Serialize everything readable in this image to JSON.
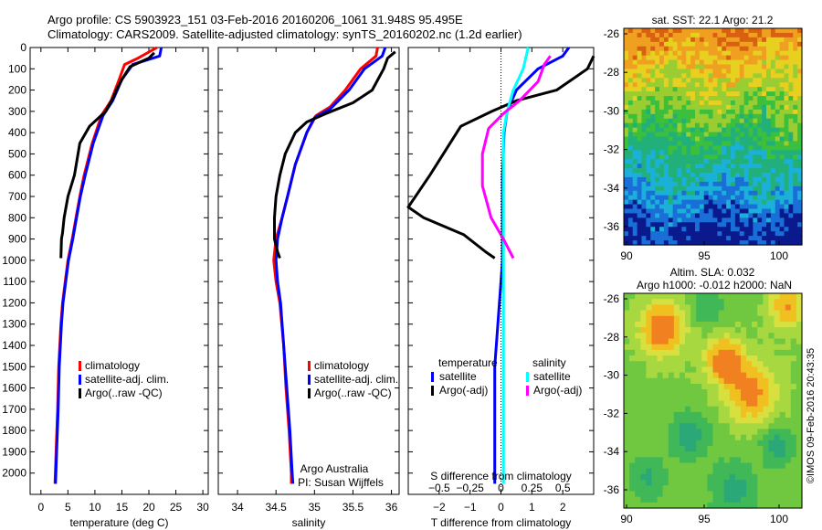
{
  "titles": {
    "line1": "Argo profile: CS 5903923_151 03-Feb-2016 20160206_1061 31.948S 95.495E",
    "line2": "Climatology: CARS2009. Satellite-adjusted climatology: synTS_20160202.nc (1.2d earlier)"
  },
  "colors": {
    "climatology": "#ff0000",
    "satellite": "#0000ff",
    "argo": "#000000",
    "salinity_satellite": "#00ffff",
    "salinity_argo": "#ff00ff"
  },
  "panel1": {
    "xlabel": "temperature (deg C)",
    "legend": [
      "climatology",
      "satellite-adj. clim.",
      "Argo(..raw -QC)"
    ],
    "chart_data": {
      "type": "line",
      "xlim": [
        -2,
        31
      ],
      "ylim": [
        2100,
        0
      ],
      "xticks": [
        0,
        5,
        10,
        15,
        20,
        25,
        30
      ],
      "yticks": [
        0,
        100,
        200,
        300,
        400,
        500,
        600,
        700,
        800,
        900,
        1000,
        1100,
        1200,
        1300,
        1400,
        1500,
        1600,
        1700,
        1800,
        1900,
        2000
      ],
      "series": [
        {
          "name": "climatology",
          "color": "red",
          "points": [
            [
              21.5,
              0
            ],
            [
              18,
              50
            ],
            [
              15.5,
              80
            ],
            [
              14.5,
              150
            ],
            [
              13,
              250
            ],
            [
              11.2,
              320
            ],
            [
              9.5,
              450
            ],
            [
              8,
              600
            ],
            [
              7.2,
              700
            ],
            [
              6.5,
              800
            ],
            [
              5.8,
              900
            ],
            [
              5,
              1000
            ],
            [
              4.5,
              1100
            ],
            [
              4,
              1200
            ],
            [
              3.7,
              1300
            ],
            [
              3.5,
              1400
            ],
            [
              3.3,
              1500
            ],
            [
              3.1,
              1700
            ],
            [
              2.8,
              1900
            ],
            [
              2.6,
              2050
            ]
          ]
        },
        {
          "name": "satellite-adj. clim.",
          "color": "blue",
          "points": [
            [
              22.3,
              0
            ],
            [
              22,
              40
            ],
            [
              17,
              80
            ],
            [
              15,
              150
            ],
            [
              13.3,
              250
            ],
            [
              11.5,
              320
            ],
            [
              9.7,
              450
            ],
            [
              8.2,
              600
            ],
            [
              7.3,
              700
            ],
            [
              6.6,
              800
            ],
            [
              5.9,
              900
            ],
            [
              5.1,
              1000
            ],
            [
              4.6,
              1100
            ],
            [
              4.1,
              1200
            ],
            [
              3.8,
              1300
            ],
            [
              3.6,
              1400
            ],
            [
              3.4,
              1500
            ],
            [
              3.2,
              1700
            ],
            [
              2.9,
              1900
            ],
            [
              2.7,
              2050
            ]
          ]
        },
        {
          "name": "Argo(..raw -QC)",
          "color": "black",
          "points": [
            [
              21,
              25
            ],
            [
              20,
              50
            ],
            [
              16.5,
              90
            ],
            [
              15,
              150
            ],
            [
              14,
              200
            ],
            [
              13.3,
              240
            ],
            [
              12,
              300
            ],
            [
              9,
              370
            ],
            [
              7.2,
              450
            ],
            [
              6.2,
              600
            ],
            [
              5,
              700
            ],
            [
              4.3,
              800
            ],
            [
              4,
              870
            ],
            [
              3.8,
              900
            ],
            [
              3.7,
              990
            ]
          ]
        }
      ]
    }
  },
  "panel2": {
    "xlabel": "salinity",
    "legend": [
      "climatology",
      "satellite-adj. clim.",
      "Argo(..raw -QC)"
    ],
    "footer1": "Argo Australia",
    "footer2": "PI: Susan Wijffels",
    "chart_data": {
      "type": "line",
      "xlim": [
        33.75,
        36.1
      ],
      "ylim": [
        2100,
        0
      ],
      "xticks": [
        34,
        34.5,
        35,
        35.5,
        36
      ],
      "xtick_labels": [
        "34",
        "34.5",
        "35",
        "35.5",
        "36"
      ],
      "series": [
        {
          "name": "climatology",
          "color": "red",
          "points": [
            [
              35.82,
              0
            ],
            [
              35.8,
              40
            ],
            [
              35.6,
              100
            ],
            [
              35.4,
              200
            ],
            [
              35.2,
              280
            ],
            [
              35.02,
              320
            ],
            [
              34.9,
              400
            ],
            [
              34.75,
              550
            ],
            [
              34.65,
              700
            ],
            [
              34.58,
              800
            ],
            [
              34.5,
              900
            ],
            [
              34.47,
              1000
            ],
            [
              34.5,
              1100
            ],
            [
              34.55,
              1200
            ],
            [
              34.6,
              1400
            ],
            [
              34.63,
              1600
            ],
            [
              34.67,
              1800
            ],
            [
              34.7,
              2000
            ],
            [
              34.7,
              2050
            ]
          ]
        },
        {
          "name": "satellite-adj. clim.",
          "color": "blue",
          "points": [
            [
              35.92,
              0
            ],
            [
              35.88,
              40
            ],
            [
              35.65,
              100
            ],
            [
              35.45,
              200
            ],
            [
              35.2,
              290
            ],
            [
              35.0,
              330
            ],
            [
              34.9,
              400
            ],
            [
              34.75,
              550
            ],
            [
              34.65,
              700
            ],
            [
              34.58,
              800
            ],
            [
              34.52,
              900
            ],
            [
              34.5,
              1000
            ],
            [
              34.52,
              1100
            ],
            [
              34.56,
              1200
            ],
            [
              34.6,
              1400
            ],
            [
              34.64,
              1600
            ],
            [
              34.68,
              1800
            ],
            [
              34.71,
              2000
            ],
            [
              34.72,
              2050
            ]
          ]
        },
        {
          "name": "Argo(..raw -QC)",
          "color": "black",
          "points": [
            [
              36.05,
              20
            ],
            [
              35.95,
              50
            ],
            [
              35.9,
              100
            ],
            [
              35.75,
              200
            ],
            [
              35.5,
              260
            ],
            [
              35.15,
              310
            ],
            [
              34.9,
              350
            ],
            [
              34.75,
              400
            ],
            [
              34.62,
              500
            ],
            [
              34.55,
              600
            ],
            [
              34.5,
              700
            ],
            [
              34.48,
              800
            ],
            [
              34.48,
              900
            ],
            [
              34.52,
              960
            ],
            [
              34.55,
              990
            ]
          ]
        }
      ]
    }
  },
  "panel3": {
    "top_label": "S difference from climatology",
    "xlabel": "T difference from climatology",
    "legend_head_temp": "temperature",
    "legend_head_sal": "salinity",
    "legend_left": [
      "satellite",
      "Argo(-adj)"
    ],
    "legend_right": [
      "satellite",
      "Argo(-adj)"
    ],
    "chart_data": {
      "type": "line",
      "xlim": [
        -3,
        3
      ],
      "ylim": [
        2100,
        0
      ],
      "xticks": [
        -2,
        -1,
        0,
        1,
        2
      ],
      "xtick_labels": [
        "−2",
        "−1",
        "0",
        "1",
        "2"
      ],
      "s_ticks": [
        -0.5,
        -0.25,
        0,
        0.25,
        0.5
      ],
      "s_tick_labels": [
        "−0.5",
        "−0.25",
        "0",
        "0.25",
        "0.5"
      ],
      "series": [
        {
          "name": "temperature satellite",
          "color": "blue",
          "axis": "T",
          "points": [
            [
              2.2,
              0
            ],
            [
              2,
              40
            ],
            [
              1.2,
              100
            ],
            [
              0.5,
              200
            ],
            [
              0.2,
              300
            ],
            [
              0.1,
              400
            ],
            [
              0.05,
              600
            ],
            [
              0.05,
              1000
            ],
            [
              -0.05,
              1200
            ],
            [
              -0.1,
              1300
            ],
            [
              -0.15,
              1400
            ],
            [
              -0.2,
              1500
            ],
            [
              -0.2,
              2050
            ]
          ]
        },
        {
          "name": "temperature Argo(-adj)",
          "color": "black",
          "axis": "T",
          "points": [
            [
              3.0,
              40
            ],
            [
              2.8,
              100
            ],
            [
              1.8,
              200
            ],
            [
              0.5,
              250
            ],
            [
              -0.3,
              300
            ],
            [
              -1.3,
              370
            ],
            [
              -2.3,
              600
            ],
            [
              -3,
              750
            ],
            [
              -2.5,
              800
            ],
            [
              -1.2,
              880
            ],
            [
              -0.5,
              960
            ],
            [
              -0.2,
              990
            ]
          ]
        },
        {
          "name": "salinity satellite",
          "color": "cyan",
          "axis": "S",
          "points": [
            [
              0.22,
              0
            ],
            [
              0.18,
              100
            ],
            [
              0.1,
              200
            ],
            [
              0.05,
              300
            ],
            [
              0.02,
              400
            ],
            [
              0.02,
              600
            ],
            [
              0.02,
              800
            ],
            [
              0.02,
              1000
            ],
            [
              0.02,
              2050
            ]
          ]
        },
        {
          "name": "salinity Argo(-adj)",
          "color": "magenta",
          "axis": "S",
          "points": [
            [
              0.4,
              40
            ],
            [
              0.35,
              80
            ],
            [
              0.3,
              160
            ],
            [
              0.15,
              250
            ],
            [
              0.02,
              310
            ],
            [
              -0.1,
              380
            ],
            [
              -0.15,
              500
            ],
            [
              -0.15,
              650
            ],
            [
              -0.08,
              800
            ],
            [
              0.02,
              900
            ],
            [
              0.1,
              990
            ]
          ]
        }
      ]
    }
  },
  "sst": {
    "title": "sat. SST: 22.1  Argo: 21.2",
    "yticks": [
      "-26",
      "-28",
      "-30",
      "-32",
      "-34",
      "-36"
    ],
    "xticks": [
      "90",
      "95",
      "100"
    ]
  },
  "sla": {
    "title1": "Altim. SLA: 0.032",
    "title2": "Argo h1000: -0.012 h2000: NaN",
    "yticks": [
      "-26",
      "-28",
      "-30",
      "-32",
      "-34",
      "-36"
    ],
    "xticks": [
      "90",
      "95",
      "100"
    ]
  },
  "footer_stamp": "©IMOS 09-Feb-2016 20:43:35"
}
